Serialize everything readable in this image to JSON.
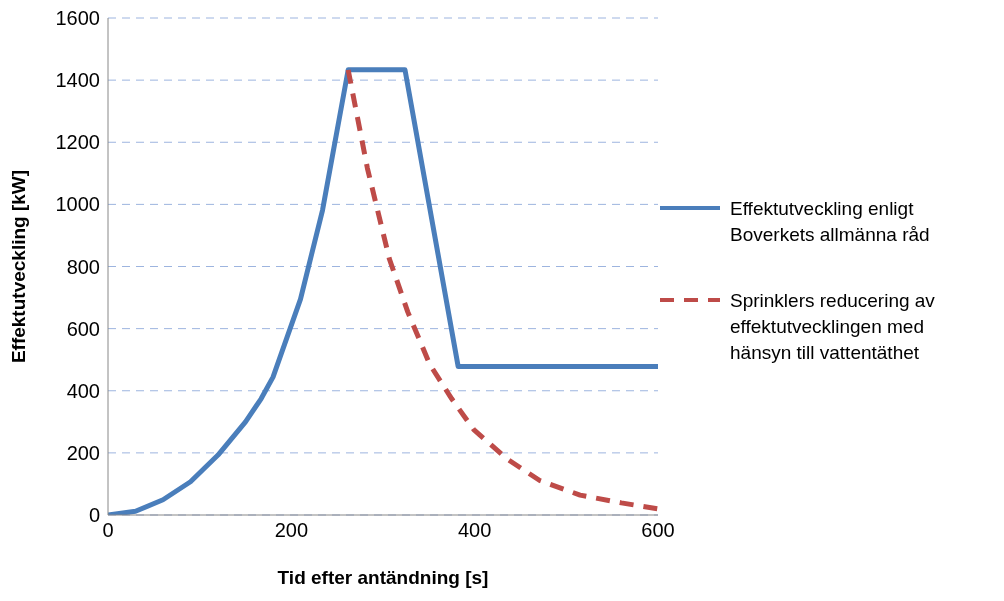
{
  "chart_data": {
    "type": "line",
    "xlabel": "Tid efter antändning [s]",
    "ylabel": "Effektutveckling [kW]",
    "xlim": [
      0,
      600
    ],
    "xticks": [
      0,
      200,
      400,
      600
    ],
    "ylim": [
      0,
      1600
    ],
    "yticks": [
      0,
      200,
      400,
      600,
      800,
      1000,
      1200,
      1400,
      1600
    ],
    "grid": "y",
    "legend": "right",
    "series": [
      {
        "name": "Effektutveckling enligt Boverkets allmänna råd",
        "color": "#4a7ebb",
        "line_style": "solid",
        "x": [
          0,
          30,
          60,
          90,
          120,
          150,
          167,
          180,
          210,
          234,
          262,
          324,
          382,
          600
        ],
        "values": [
          0,
          12,
          49,
          107,
          193,
          300,
          374,
          444,
          695,
          981,
          1433,
          1433,
          478,
          478
        ]
      },
      {
        "name": "Sprinklers reducering av effektutvecklingen med hänsyn till vattentäthet",
        "color": "#be4b48",
        "line_style": "dashed",
        "x": [
          262,
          283,
          307,
          327,
          351,
          375,
          399,
          435,
          471,
          515,
          560,
          600
        ],
        "values": [
          1433,
          1116,
          824,
          654,
          485,
          374,
          275,
          181,
          111,
          64,
          39,
          20
        ]
      }
    ]
  }
}
